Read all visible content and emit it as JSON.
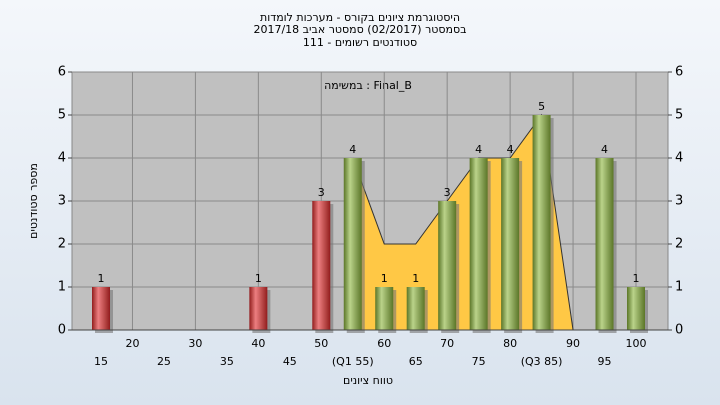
{
  "chart_data": {
    "type": "bar",
    "title_lines": [
      "היסטוגרמת ציונים בקורס - מערכות לומדות",
      "בסמסטר  (02/2017)  סמסטר אביב 2017/18",
      "סטודנטים רשומים - 111"
    ],
    "annotation": "במשימה : Final_B",
    "xlabel": "טווח ציונים",
    "ylabel": "מספר סטודנטים",
    "categories": [
      "15",
      "20",
      "25",
      "30",
      "35",
      "40",
      "45",
      "50",
      "(Q1 55)",
      "60",
      "65",
      "70",
      "75",
      "80",
      "(Q3 85)",
      "90",
      "95",
      "100"
    ],
    "values": [
      1,
      0,
      0,
      0,
      0,
      1,
      0,
      3,
      4,
      1,
      1,
      3,
      4,
      4,
      5,
      0,
      4,
      1
    ],
    "colors": [
      "#e0282c",
      "#e0282c",
      "#e0282c",
      "#e0282c",
      "#e0282c",
      "#e0282c",
      "#e0282c",
      "#e0282c",
      "#8db63c",
      "#8db63c",
      "#8db63c",
      "#8db63c",
      "#8db63c",
      "#8db63c",
      "#8db63c",
      "#8db63c",
      "#8db63c",
      "#8db63c"
    ],
    "trend": {
      "color": "#ffc845",
      "values": [
        null,
        null,
        null,
        null,
        null,
        null,
        null,
        null,
        4,
        2,
        2,
        3,
        4,
        4,
        5,
        0,
        null,
        null
      ]
    },
    "ylim": [
      0,
      6
    ],
    "yticks": [
      0,
      1,
      2,
      3,
      4,
      5,
      6
    ],
    "grid": true
  }
}
